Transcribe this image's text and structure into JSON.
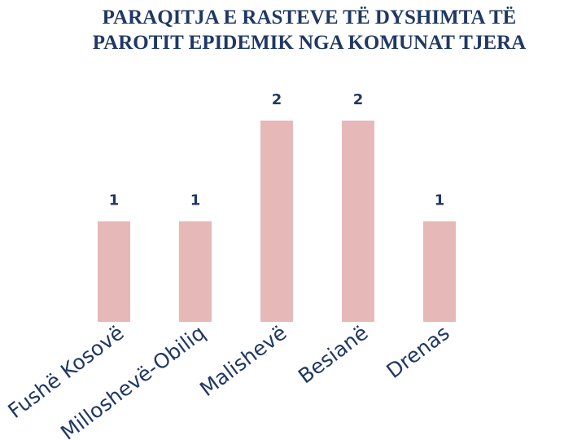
{
  "chart_data": {
    "type": "bar",
    "title": "PARAQITJA E RASTEVE TË DYSHIMTA TË PAROTIT EPIDEMIK NGA KOMUNAT TJERA",
    "categories": [
      "Fushë Kosovë",
      "Milloshevë-Obiliq",
      "Malishevë",
      "Besianë",
      "Drenas"
    ],
    "values": [
      1,
      1,
      2,
      2,
      1
    ],
    "color": "#e6b9b8",
    "ylim": [
      0,
      2
    ]
  }
}
